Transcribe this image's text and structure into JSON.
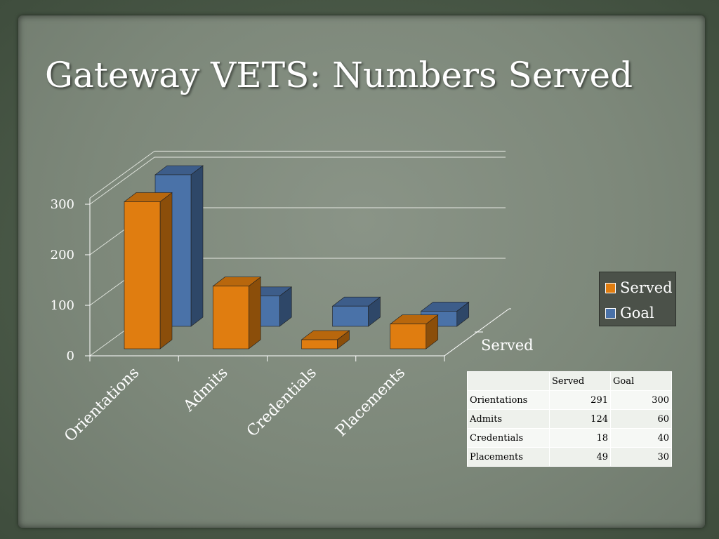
{
  "slide": {
    "title": "Gateway VETS: Numbers Served"
  },
  "chart_data": {
    "type": "bar",
    "categories": [
      "Orientations",
      "Admits",
      "Credentials",
      "Placements"
    ],
    "series": [
      {
        "name": "Served",
        "values": [
          291,
          124,
          18,
          49
        ],
        "color": "#e07d10"
      },
      {
        "name": "Goal",
        "values": [
          300,
          60,
          40,
          30
        ],
        "color": "#4a72a8"
      }
    ],
    "yticks": [
      "0",
      "100",
      "200",
      "300"
    ],
    "ylim": [
      0,
      300
    ],
    "depth_axis_label": "Served",
    "legend_position": "right",
    "grid": true,
    "table": {
      "header": [
        "",
        "Served",
        "Goal"
      ],
      "rows": [
        [
          "Orientations",
          "291",
          "300"
        ],
        [
          "Admits",
          "124",
          "60"
        ],
        [
          "Credentials",
          "18",
          "40"
        ],
        [
          "Placements",
          "49",
          "30"
        ]
      ]
    }
  }
}
